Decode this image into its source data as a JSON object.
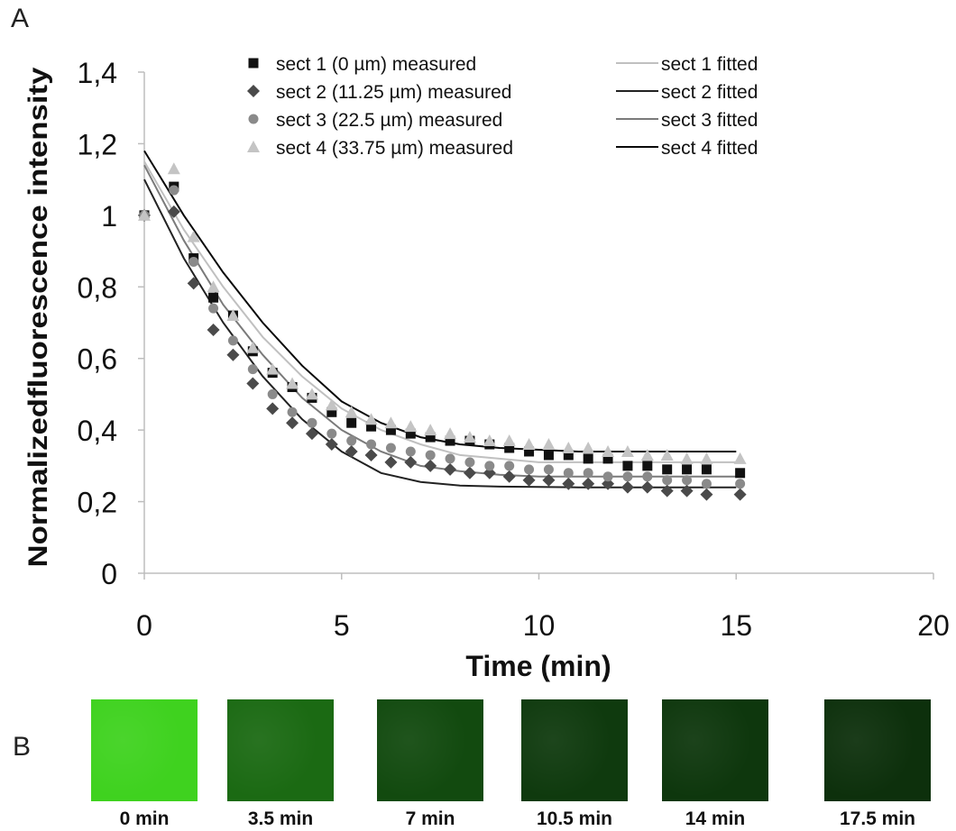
{
  "panels": {
    "a_label": "A",
    "b_label": "B"
  },
  "chart_data": {
    "type": "scatter",
    "xlabel": "Time (min)",
    "ylabel": "Normalizedfluorescence intensity",
    "xlim": [
      0,
      20
    ],
    "ylim": [
      0,
      1.4
    ],
    "x_ticks": [
      "0",
      "5",
      "10",
      "15",
      "20"
    ],
    "y_ticks": [
      "0",
      "0,2",
      "0,4",
      "0,6",
      "0,8",
      "1",
      "1,2",
      "1,4"
    ],
    "grid": false,
    "legend_position": "top",
    "x": [
      0,
      0.75,
      1.25,
      1.75,
      2.25,
      2.75,
      3.25,
      3.75,
      4.25,
      4.75,
      5.25,
      5.75,
      6.25,
      6.75,
      7.25,
      7.75,
      8.25,
      8.75,
      9.25,
      9.75,
      10.25,
      10.75,
      11.25,
      11.75,
      12.25,
      12.75,
      13.25,
      13.75,
      14.25,
      15.1
    ],
    "series": [
      {
        "name": "sect 1 (0 µm) measured",
        "marker": "square",
        "color": "#111111",
        "values": [
          1.0,
          1.08,
          0.88,
          0.77,
          0.72,
          0.62,
          0.56,
          0.52,
          0.49,
          0.45,
          0.42,
          0.41,
          0.4,
          0.39,
          0.38,
          0.37,
          0.37,
          0.36,
          0.35,
          0.34,
          0.33,
          0.33,
          0.32,
          0.32,
          0.3,
          0.3,
          0.29,
          0.29,
          0.29,
          0.28
        ]
      },
      {
        "name": "sect 2 (11.25 µm) measured",
        "marker": "diamond",
        "color": "#4a4a4a",
        "values": [
          1.0,
          1.01,
          0.81,
          0.68,
          0.61,
          0.53,
          0.46,
          0.42,
          0.39,
          0.36,
          0.34,
          0.33,
          0.31,
          0.31,
          0.3,
          0.29,
          0.28,
          0.28,
          0.27,
          0.26,
          0.26,
          0.25,
          0.25,
          0.25,
          0.24,
          0.24,
          0.23,
          0.23,
          0.22,
          0.22
        ]
      },
      {
        "name": "sect 3 (22.5 µm) measured",
        "marker": "circle",
        "color": "#8a8a8a",
        "values": [
          1.0,
          1.07,
          0.87,
          0.74,
          0.65,
          0.57,
          0.5,
          0.45,
          0.42,
          0.39,
          0.37,
          0.36,
          0.35,
          0.34,
          0.33,
          0.32,
          0.31,
          0.3,
          0.3,
          0.29,
          0.29,
          0.28,
          0.28,
          0.27,
          0.27,
          0.27,
          0.26,
          0.26,
          0.25,
          0.25
        ]
      },
      {
        "name": "sect 4 (33.75 µm) measured",
        "marker": "triangle",
        "color": "#c4c4c4",
        "values": [
          1.0,
          1.13,
          0.94,
          0.8,
          0.72,
          0.63,
          0.57,
          0.53,
          0.5,
          0.47,
          0.45,
          0.43,
          0.42,
          0.41,
          0.4,
          0.39,
          0.38,
          0.37,
          0.37,
          0.36,
          0.36,
          0.35,
          0.35,
          0.34,
          0.34,
          0.33,
          0.33,
          0.32,
          0.32,
          0.32
        ]
      }
    ],
    "fits": [
      {
        "name": "sect 1 fitted",
        "color": "#c0c0c0",
        "x": [
          0,
          1,
          2,
          3,
          4,
          5,
          6,
          7,
          8,
          9,
          10,
          11,
          12,
          13,
          14,
          15
        ],
        "values": [
          1.15,
          0.96,
          0.8,
          0.66,
          0.55,
          0.46,
          0.4,
          0.36,
          0.33,
          0.32,
          0.31,
          0.31,
          0.31,
          0.31,
          0.31,
          0.31
        ]
      },
      {
        "name": "sect 2 fitted",
        "color": "#222222",
        "x": [
          0,
          1,
          2,
          3,
          4,
          5,
          6,
          7,
          8,
          9,
          10,
          11,
          12,
          13,
          14,
          15
        ],
        "values": [
          1.1,
          0.88,
          0.7,
          0.55,
          0.43,
          0.34,
          0.28,
          0.255,
          0.245,
          0.242,
          0.241,
          0.24,
          0.24,
          0.24,
          0.24,
          0.24
        ]
      },
      {
        "name": "sect 3 fitted",
        "color": "#7a7a7a",
        "x": [
          0,
          1,
          2,
          3,
          4,
          5,
          6,
          7,
          8,
          9,
          10,
          11,
          12,
          13,
          14,
          15
        ],
        "values": [
          1.14,
          0.93,
          0.75,
          0.61,
          0.49,
          0.4,
          0.34,
          0.3,
          0.285,
          0.275,
          0.27,
          0.27,
          0.27,
          0.27,
          0.27,
          0.27
        ]
      },
      {
        "name": "sect 4 fitted",
        "color": "#0a0a0a",
        "x": [
          0,
          1,
          2,
          3,
          4,
          5,
          6,
          7,
          8,
          9,
          10,
          11,
          12,
          13,
          14,
          15
        ],
        "values": [
          1.18,
          1.0,
          0.84,
          0.7,
          0.58,
          0.48,
          0.42,
          0.38,
          0.36,
          0.35,
          0.345,
          0.34,
          0.34,
          0.34,
          0.34,
          0.34
        ]
      }
    ]
  },
  "images": [
    {
      "caption": "0 min",
      "color": "#3fd21f"
    },
    {
      "caption": "3.5 min",
      "color": "#1b6a13"
    },
    {
      "caption": "7 min",
      "color": "#124a0f"
    },
    {
      "caption": "10.5 min",
      "color": "#0f3a0e"
    },
    {
      "caption": "14 min",
      "color": "#0e370d"
    },
    {
      "caption": "17.5 min",
      "color": "#0d300c"
    }
  ]
}
